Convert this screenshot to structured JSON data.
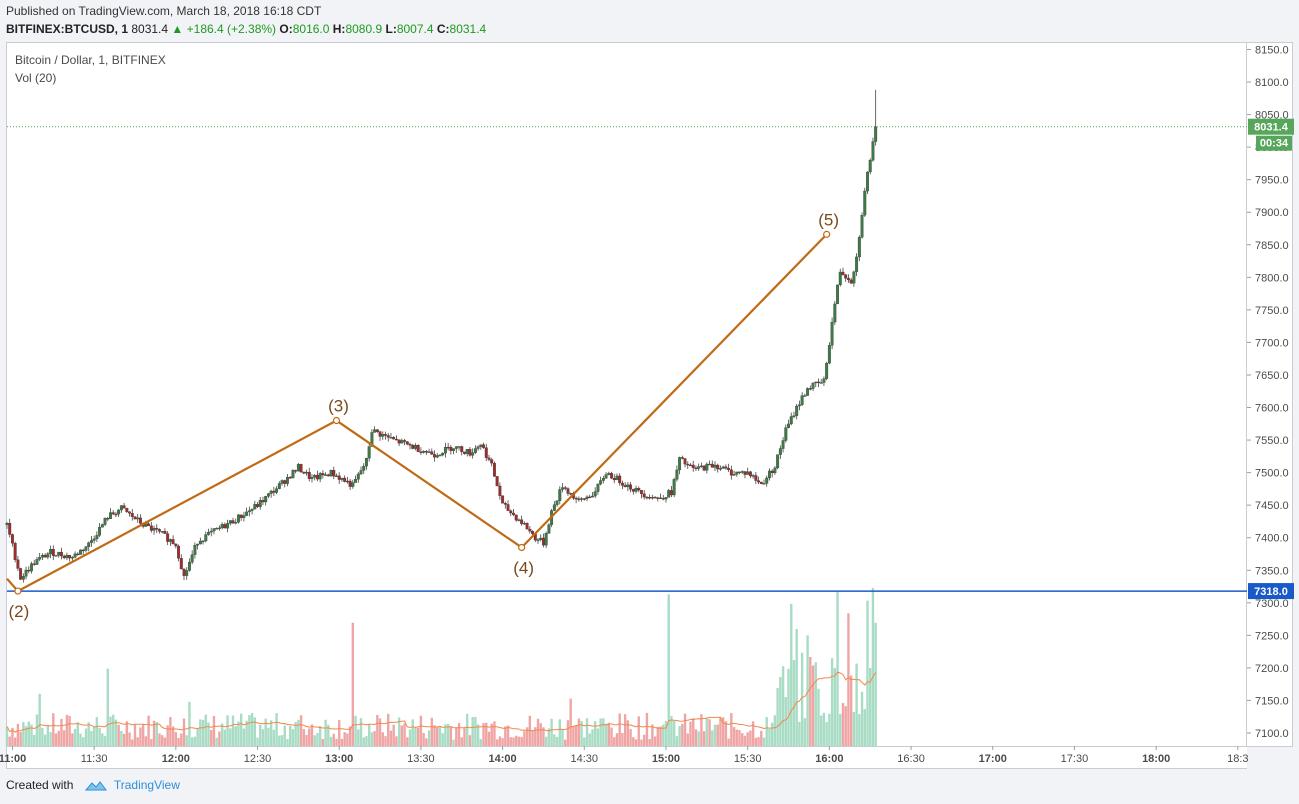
{
  "header": {
    "published": "Published on TradingView.com, March 18, 2018 16:18 CDT",
    "symbol": "BITFINEX:BTCUSD, 1",
    "last": "8031.4",
    "change_arrow": "▲",
    "change": "+186.4 (+2.38%)",
    "o_label": "O:",
    "o_value": "8016.0",
    "h_label": "H:",
    "h_value": "8080.9",
    "l_label": "L:",
    "l_value": "8007.4",
    "c_label": "C:",
    "c_value": "8031.4"
  },
  "legend": {
    "title": "Bitcoin / Dollar, 1, BITFINEX",
    "volume": "Vol (20)"
  },
  "footer": {
    "created_with": "Created with",
    "brand": "TradingView"
  },
  "colors": {
    "up": "#3d7a46",
    "down": "#9e2d2d",
    "vol_up": "#a8dcc4",
    "vol_down": "#f0a5a5",
    "wave": "#c06a14",
    "support": "#1a5ac8",
    "price_tag": "#58a65c",
    "vol_ma": "#f0894a"
  },
  "chart_data": {
    "type": "candlestick",
    "title": "Bitcoin / Dollar, 1, BITFINEX",
    "symbol": "BITFINEX:BTCUSD",
    "interval": "1",
    "y_ticks": [
      "8150.0",
      "8100.0",
      "8050.0",
      "8000.0",
      "7950.0",
      "7900.0",
      "7850.0",
      "7800.0",
      "7750.0",
      "7700.0",
      "7650.0",
      "7600.0",
      "7550.0",
      "7500.0",
      "7450.0",
      "7400.0",
      "7350.0",
      "7300.0",
      "7250.0",
      "7200.0",
      "7150.0",
      "7100.0"
    ],
    "ylim": [
      7080,
      8160
    ],
    "x_ticks": [
      "11:00",
      "11:30",
      "12:00",
      "12:30",
      "13:00",
      "13:30",
      "14:00",
      "14:30",
      "15:00",
      "15:30",
      "16:00",
      "16:30",
      "17:00",
      "17:30",
      "18:00",
      "18:3"
    ],
    "x_range": [
      "10:58",
      "18:33"
    ],
    "last_price": {
      "value": "8031.4",
      "countdown": "00:34"
    },
    "support_line": {
      "value": "7318.0"
    },
    "wave_labels": [
      {
        "label": "(2)",
        "time": "11:02",
        "price": 7318
      },
      {
        "label": "(3)",
        "time": "12:59",
        "price": 7580
      },
      {
        "label": "(4)",
        "time": "14:07",
        "price": 7385
      },
      {
        "label": "(5)",
        "time": "15:59",
        "price": 7866
      }
    ],
    "wave_path_start": {
      "time": "10:58",
      "price": 7337
    },
    "price_path": [
      [
        "10:58",
        7420
      ],
      [
        "11:03",
        7338
      ],
      [
        "11:08",
        7362
      ],
      [
        "11:14",
        7378
      ],
      [
        "11:22",
        7370
      ],
      [
        "11:28",
        7390
      ],
      [
        "11:35",
        7432
      ],
      [
        "11:40",
        7445
      ],
      [
        "11:48",
        7420
      ],
      [
        "11:55",
        7405
      ],
      [
        "12:00",
        7390
      ],
      [
        "12:03",
        7340
      ],
      [
        "12:08",
        7395
      ],
      [
        "12:15",
        7412
      ],
      [
        "12:22",
        7428
      ],
      [
        "12:30",
        7450
      ],
      [
        "12:38",
        7480
      ],
      [
        "12:45",
        7508
      ],
      [
        "12:50",
        7490
      ],
      [
        "12:57",
        7500
      ],
      [
        "13:05",
        7480
      ],
      [
        "13:10",
        7518
      ],
      [
        "13:12",
        7565
      ],
      [
        "13:20",
        7550
      ],
      [
        "13:27",
        7540
      ],
      [
        "13:35",
        7528
      ],
      [
        "13:42",
        7540
      ],
      [
        "13:48",
        7530
      ],
      [
        "13:52",
        7545
      ],
      [
        "13:56",
        7510
      ],
      [
        "14:00",
        7450
      ],
      [
        "14:04",
        7435
      ],
      [
        "14:08",
        7420
      ],
      [
        "14:12",
        7400
      ],
      [
        "14:15",
        7392
      ],
      [
        "14:18",
        7440
      ],
      [
        "14:22",
        7480
      ],
      [
        "14:28",
        7455
      ],
      [
        "14:34",
        7470
      ],
      [
        "14:38",
        7500
      ],
      [
        "14:44",
        7485
      ],
      [
        "14:50",
        7470
      ],
      [
        "14:57",
        7460
      ],
      [
        "15:02",
        7470
      ],
      [
        "15:05",
        7520
      ],
      [
        "15:10",
        7505
      ],
      [
        "15:18",
        7512
      ],
      [
        "15:24",
        7500
      ],
      [
        "15:30",
        7500
      ],
      [
        "15:35",
        7482
      ],
      [
        "15:40",
        7510
      ],
      [
        "15:44",
        7565
      ],
      [
        "15:48",
        7600
      ],
      [
        "15:52",
        7630
      ],
      [
        "15:58",
        7640
      ],
      [
        "16:00",
        7700
      ],
      [
        "16:02",
        7760
      ],
      [
        "16:04",
        7810
      ],
      [
        "16:08",
        7795
      ],
      [
        "16:10",
        7830
      ],
      [
        "16:12",
        7900
      ],
      [
        "16:14",
        7960
      ],
      [
        "16:16",
        8005
      ],
      [
        "16:17",
        8031.4
      ]
    ],
    "volume_spikes": [
      [
        "13:05",
        0.78
      ],
      [
        "15:01",
        0.96
      ],
      [
        "15:46",
        0.9
      ],
      [
        "15:48",
        0.74
      ],
      [
        "16:03",
        0.98
      ],
      [
        "16:07",
        0.84
      ],
      [
        "16:14",
        0.92
      ],
      [
        "16:16",
        1.0
      ],
      [
        "16:17",
        0.78
      ],
      [
        "11:35",
        0.49
      ],
      [
        "11:10",
        0.33
      ],
      [
        "12:05",
        0.28
      ],
      [
        "14:25",
        0.3
      ],
      [
        "15:52",
        0.7
      ]
    ]
  }
}
